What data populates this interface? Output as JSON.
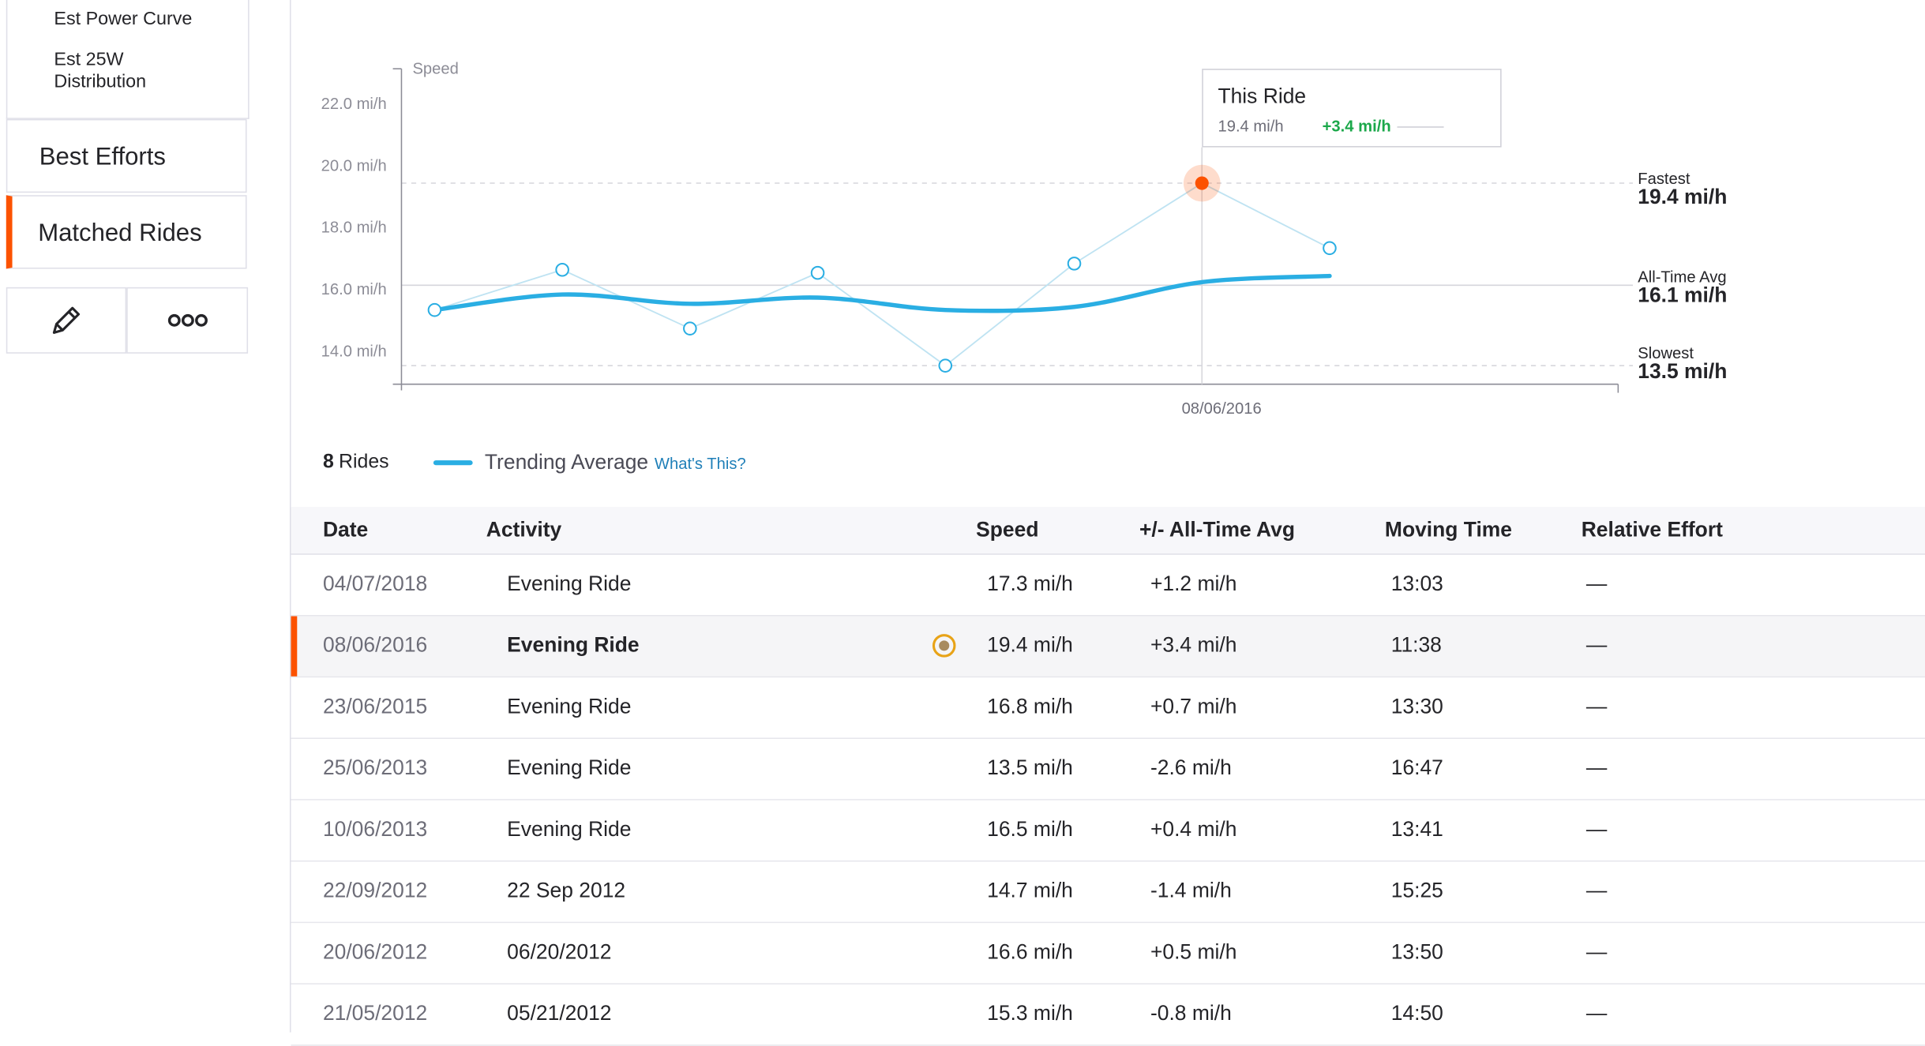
{
  "sidebar": {
    "sub_links": [
      "Est Power Curve",
      "Est 25W Distribution"
    ],
    "items": [
      {
        "label": "Best Efforts",
        "active": false
      },
      {
        "label": "Matched Rides",
        "active": true
      }
    ],
    "actions": [
      "edit-icon",
      "more-icon"
    ]
  },
  "chart_data": {
    "type": "line",
    "ylabel": "Speed",
    "yticks": [
      "22.0 mi/h",
      "20.0 mi/h",
      "18.0 mi/h",
      "16.0 mi/h",
      "14.0 mi/h"
    ],
    "ylim": [
      12.9,
      23.1
    ],
    "x_highlight_label": "08/06/2016",
    "series": [
      {
        "values": [
          15.3,
          16.6,
          14.7,
          16.5,
          13.5,
          16.8,
          19.4,
          17.3
        ]
      },
      {
        "name": "Trending Average",
        "values": [
          15.3,
          15.8,
          15.5,
          15.7,
          15.3,
          15.4,
          16.2,
          16.4
        ]
      }
    ],
    "highlight_index": 6,
    "references": [
      {
        "label": "Fastest",
        "value_text": "19.4 mi/h",
        "value": 19.4,
        "style": "dashed"
      },
      {
        "label": "All-Time Avg",
        "value_text": "16.1 mi/h",
        "value": 16.1,
        "style": "solid"
      },
      {
        "label": "Slowest",
        "value_text": "13.5 mi/h",
        "value": 13.5,
        "style": "dashed"
      }
    ],
    "colors": {
      "series": "#bfe3f2",
      "trend": "#2aaee3",
      "highlight": "#fc5200",
      "axis": "#8c8c96",
      "grid": "#d6d6dc"
    }
  },
  "tooltip": {
    "title": "This Ride",
    "value": "19.4 mi/h",
    "diff": "+3.4 mi/h"
  },
  "legend": {
    "count": "8",
    "count_label": "Rides",
    "trend_label": "Trending Average",
    "help_link": "What's This?"
  },
  "table": {
    "headers": [
      "Date",
      "Activity",
      "Speed",
      "+/- All-Time Avg",
      "Moving Time",
      "Relative Effort"
    ],
    "rows": [
      {
        "date": "04/07/2018",
        "activity": "Evening Ride",
        "speed": "17.3 mi/h",
        "diff": "+1.2 mi/h",
        "time": "13:03",
        "effort": "—"
      },
      {
        "date": "08/06/2016",
        "activity": "Evening Ride",
        "speed": "19.4 mi/h",
        "diff": "+3.4 mi/h",
        "time": "11:38",
        "effort": "—",
        "current": true,
        "pr": true
      },
      {
        "date": "23/06/2015",
        "activity": "Evening Ride",
        "speed": "16.8 mi/h",
        "diff": "+0.7 mi/h",
        "time": "13:30",
        "effort": "—"
      },
      {
        "date": "25/06/2013",
        "activity": "Evening Ride",
        "speed": "13.5 mi/h",
        "diff": "-2.6 mi/h",
        "time": "16:47",
        "effort": "—"
      },
      {
        "date": "10/06/2013",
        "activity": "Evening Ride",
        "speed": "16.5 mi/h",
        "diff": "+0.4 mi/h",
        "time": "13:41",
        "effort": "—"
      },
      {
        "date": "22/09/2012",
        "activity": "22 Sep 2012",
        "speed": "14.7 mi/h",
        "diff": "-1.4 mi/h",
        "time": "15:25",
        "effort": "—"
      },
      {
        "date": "20/06/2012",
        "activity": "06/20/2012",
        "speed": "16.6 mi/h",
        "diff": "+0.5 mi/h",
        "time": "13:50",
        "effort": "—"
      },
      {
        "date": "21/05/2012",
        "activity": "05/21/2012",
        "speed": "15.3 mi/h",
        "diff": "-0.8 mi/h",
        "time": "14:50",
        "effort": "—"
      }
    ]
  }
}
